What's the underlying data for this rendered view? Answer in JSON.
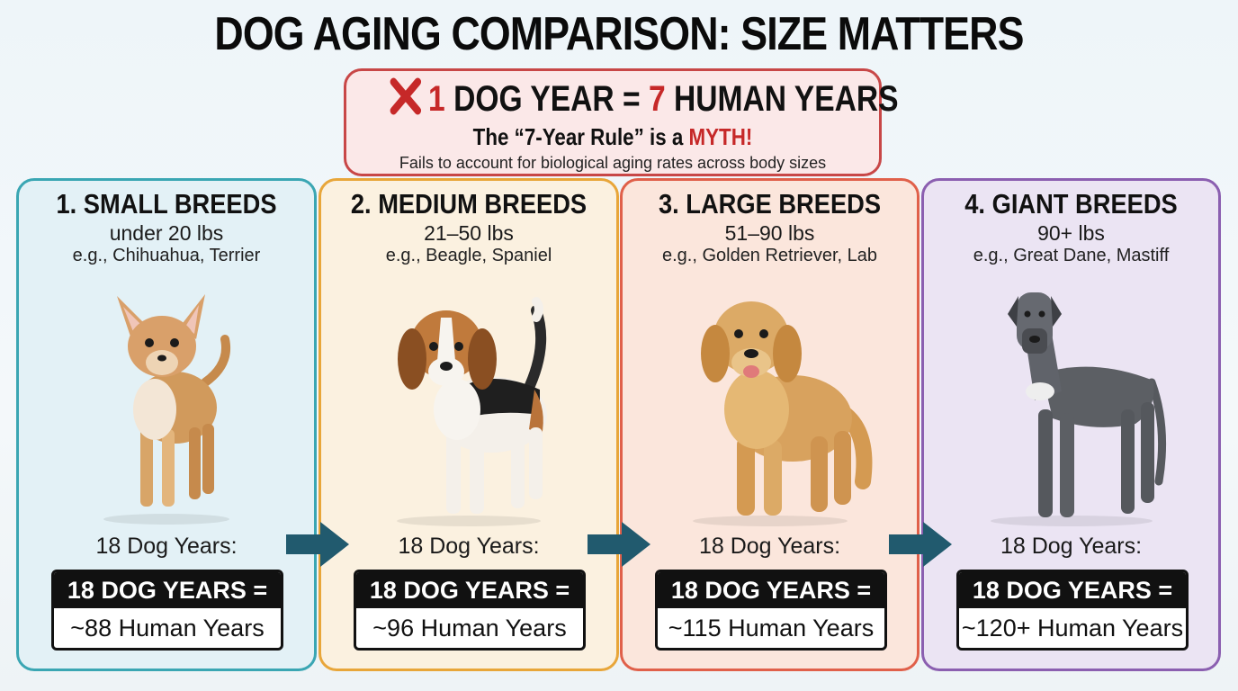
{
  "title": "DOG AGING COMPARISON: SIZE MATTERS",
  "myth": {
    "headline_1": "1",
    "headline_2": " DOG YEAR = ",
    "headline_3": "7",
    "headline_4": " HUMAN YEARS",
    "subline_1": "The “7-Year Rule” is a ",
    "subline_2": "MYTH!",
    "note": "Fails to account for biological aging rates across body sizes",
    "icon": "red-x-icon",
    "accent_color": "#c62828"
  },
  "cards": [
    {
      "title": "1. SMALL BREEDS",
      "weight": "under 20 lbs",
      "example": "e.g., Chihuahua, Terrier",
      "dog_label": "18 Dog Years:",
      "result_head": "18 DOG YEARS =",
      "result_value": "~88 Human Years",
      "border_color": "#3aa6b3",
      "bg_color": "#e3f1f6"
    },
    {
      "title": "2. MEDIUM BREEDS",
      "weight": "21–50 lbs",
      "example": "e.g., Beagle, Spaniel",
      "dog_label": "18 Dog Years:",
      "result_head": "18 DOG YEARS =",
      "result_value": "~96 Human Years",
      "border_color": "#e8a63a",
      "bg_color": "#fbf1e0"
    },
    {
      "title": "3. LARGE BREEDS",
      "weight": "51–90 lbs",
      "example": "e.g., Golden Retriever, Lab",
      "dog_label": "18 Dog Years:",
      "result_head": "18 DOG YEARS =",
      "result_value": "~115 Human Years",
      "border_color": "#e0604a",
      "bg_color": "#fbe6dc"
    },
    {
      "title": "4. GIANT BREEDS",
      "weight": "90+ lbs",
      "example": "e.g., Great Dane, Mastiff",
      "dog_label": "18 Dog Years:",
      "result_head": "18 DOG YEARS =",
      "result_value": "~120+ Human Years",
      "border_color": "#8b5fb0",
      "bg_color": "#ebe4f3"
    }
  ],
  "arrow_color": "#215a6e"
}
